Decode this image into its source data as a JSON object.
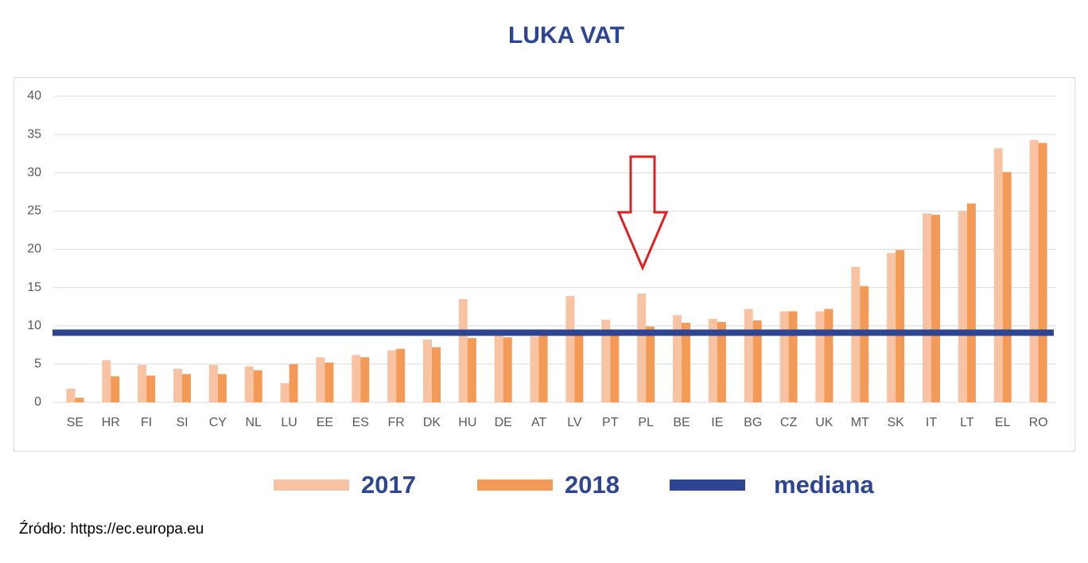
{
  "chart_data": {
    "type": "bar",
    "title": "LUKA VAT",
    "categories": [
      "SE",
      "HR",
      "FI",
      "SI",
      "CY",
      "NL",
      "LU",
      "EE",
      "ES",
      "FR",
      "DK",
      "HU",
      "DE",
      "AT",
      "LV",
      "PT",
      "PL",
      "BE",
      "IE",
      "BG",
      "CZ",
      "UK",
      "MT",
      "SK",
      "IT",
      "LT",
      "EL",
      "RO"
    ],
    "series": [
      {
        "name": "2017",
        "color": "#f8c3a3",
        "values": [
          1.8,
          5.5,
          4.9,
          4.4,
          4.9,
          4.7,
          2.5,
          5.9,
          6.2,
          6.8,
          8.2,
          13.5,
          8.9,
          8.6,
          13.9,
          10.8,
          14.2,
          11.4,
          10.9,
          12.2,
          11.9,
          11.9,
          17.7,
          19.5,
          24.7,
          25.0,
          33.2,
          34.3
        ]
      },
      {
        "name": "2018",
        "color": "#f39a56",
        "values": [
          0.6,
          3.4,
          3.5,
          3.7,
          3.7,
          4.2,
          5.0,
          5.2,
          5.9,
          7.0,
          7.2,
          8.4,
          8.5,
          8.8,
          9.0,
          9.1,
          9.9,
          10.4,
          10.5,
          10.7,
          11.9,
          12.2,
          15.2,
          19.9,
          24.5,
          26.0,
          30.1,
          33.9
        ]
      }
    ],
    "median": {
      "name": "mediana",
      "value": 9.1,
      "color": "#2e4594"
    },
    "ylim": [
      0,
      40
    ],
    "yticks": [
      0,
      5,
      10,
      15,
      20,
      25,
      30,
      35,
      40
    ],
    "grid": true,
    "source": "Źródło:  https://ec.europa.eu"
  }
}
